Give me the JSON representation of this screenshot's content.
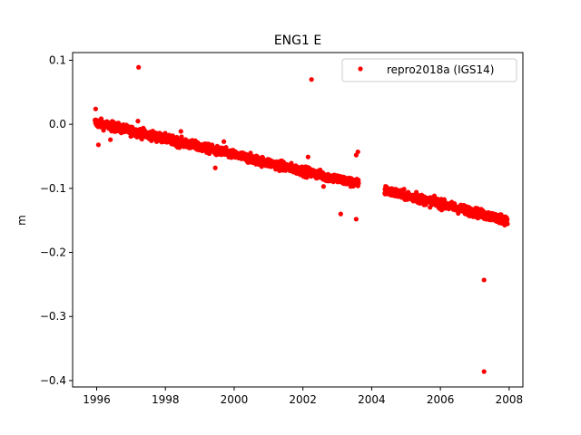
{
  "chart_data": {
    "type": "scatter",
    "title": "ENG1 E",
    "xlabel": "",
    "ylabel": "m",
    "xlim": [
      1995.3,
      2008.4
    ],
    "ylim": [
      -0.41,
      0.112
    ],
    "x_ticks": [
      1996,
      1998,
      2000,
      2002,
      2004,
      2006,
      2008
    ],
    "x_tick_labels": [
      "1996",
      "1998",
      "2000",
      "2002",
      "2004",
      "2006",
      "2008"
    ],
    "y_ticks": [
      0.1,
      0.0,
      -0.1,
      -0.2,
      -0.3,
      -0.4
    ],
    "y_tick_labels": [
      "0.1",
      "0.0",
      "−0.1",
      "−0.2",
      "−0.3",
      "−0.4"
    ],
    "grid": false,
    "legend_position": "top-right",
    "series": [
      {
        "name": "repro2018a (IGS14)",
        "color": "#ff0000",
        "marker": "dot",
        "trend_segments": [
          {
            "x_start": 1995.95,
            "x_end": 2003.62,
            "y_start": 0.003,
            "y_end": -0.093
          },
          {
            "x_start": 2004.38,
            "x_end": 2007.95,
            "y_start": -0.103,
            "y_end": -0.15
          }
        ],
        "outliers": [
          {
            "x": 1995.97,
            "y": 0.024
          },
          {
            "x": 1996.05,
            "y": -0.032
          },
          {
            "x": 1996.4,
            "y": -0.024
          },
          {
            "x": 1997.22,
            "y": 0.089
          },
          {
            "x": 1997.2,
            "y": 0.005
          },
          {
            "x": 1998.45,
            "y": -0.011
          },
          {
            "x": 1999.45,
            "y": -0.068
          },
          {
            "x": 1999.7,
            "y": -0.027
          },
          {
            "x": 2002.15,
            "y": -0.051
          },
          {
            "x": 2002.25,
            "y": 0.07
          },
          {
            "x": 2002.6,
            "y": -0.097
          },
          {
            "x": 2003.1,
            "y": -0.14
          },
          {
            "x": 2003.55,
            "y": -0.148
          },
          {
            "x": 2003.55,
            "y": -0.048
          },
          {
            "x": 2003.6,
            "y": -0.043
          },
          {
            "x": 2005.3,
            "y": -0.106
          },
          {
            "x": 2007.27,
            "y": -0.243
          },
          {
            "x": 2007.27,
            "y": -0.386
          }
        ]
      }
    ]
  }
}
